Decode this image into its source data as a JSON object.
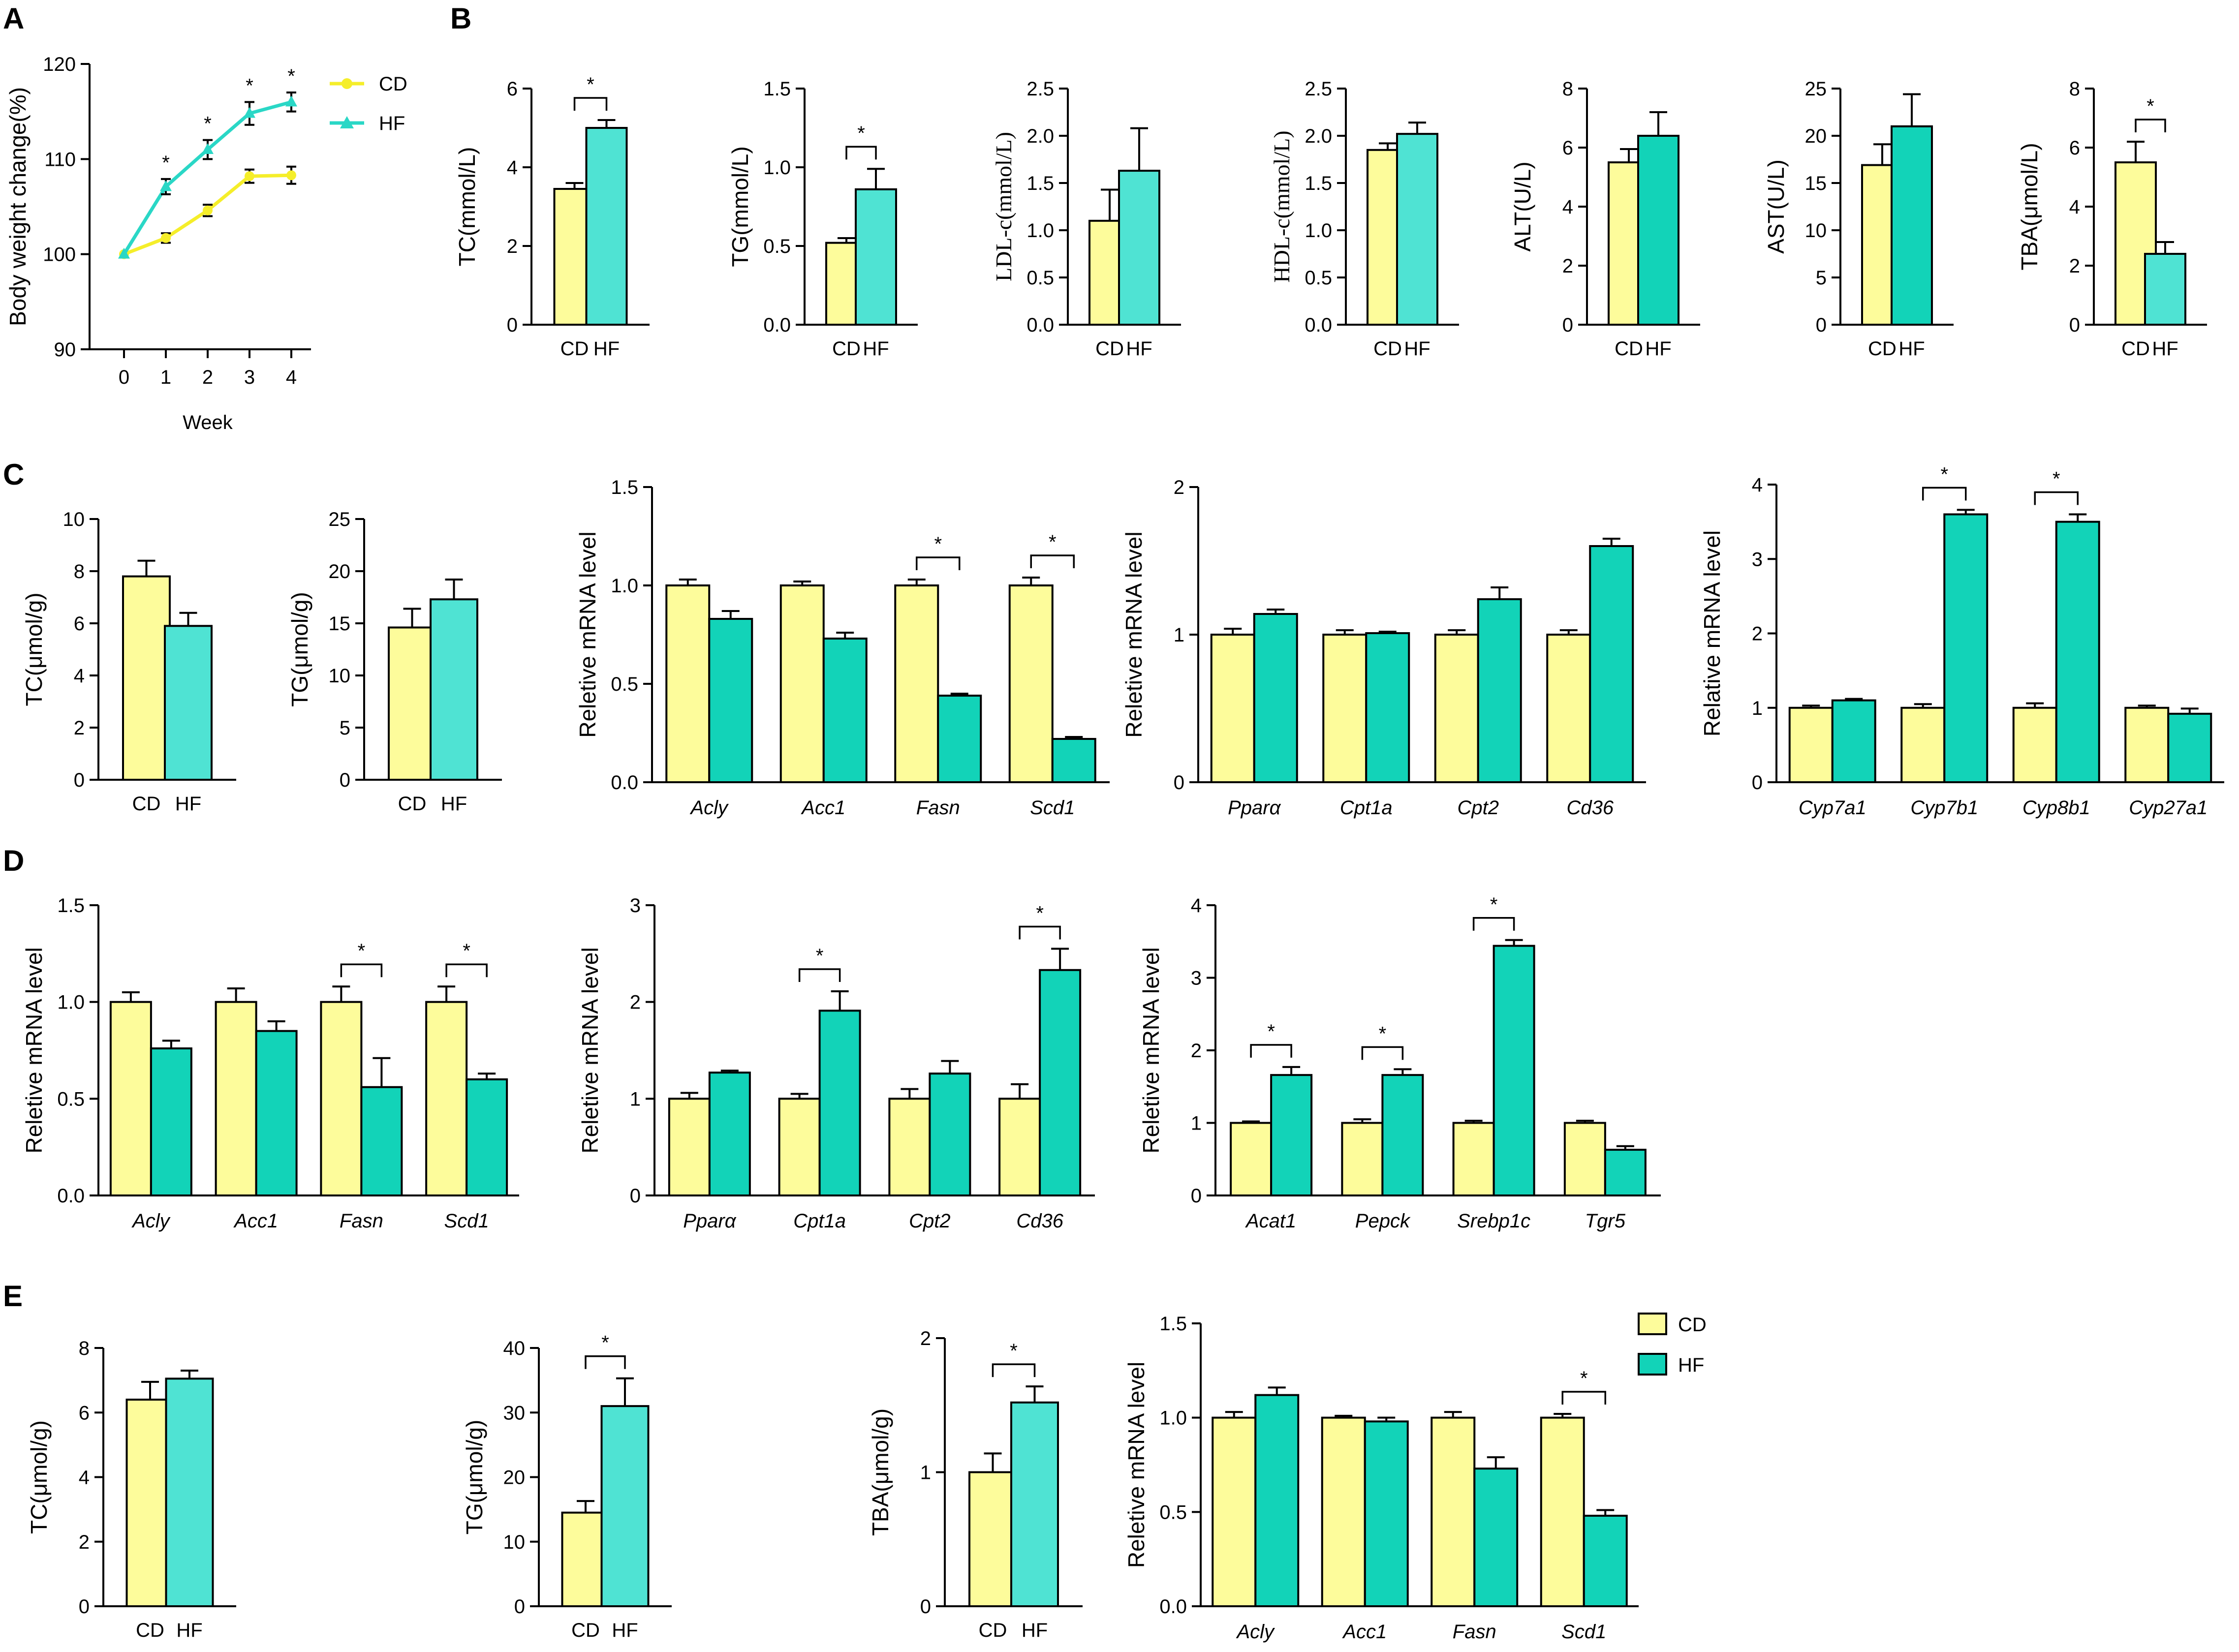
{
  "panel_labels": [
    "A",
    "B",
    "C",
    "D",
    "E"
  ],
  "colors": {
    "CD": "#FDFC9B",
    "HF_light": "#4FE3D3",
    "HF_dark": "#12D3B8",
    "CD_line": "#F5EE2A",
    "HF_line": "#2AD7C6"
  },
  "legend": {
    "cd": "CD",
    "hf": "HF"
  },
  "chart_data": [
    {
      "id": "A",
      "type": "line",
      "ylabel": "Body weight change(%)",
      "xlabel": "Week",
      "x": [
        0,
        1,
        2,
        3,
        4
      ],
      "ylim": [
        90,
        120
      ],
      "yticks": [
        90,
        100,
        110,
        120
      ],
      "series": [
        {
          "name": "CD",
          "values": [
            100,
            101.7,
            104.6,
            108.2,
            108.3
          ],
          "err": [
            0,
            0.5,
            0.6,
            0.7,
            0.9
          ]
        },
        {
          "name": "HF",
          "values": [
            100,
            107.1,
            111,
            114.8,
            116
          ],
          "err": [
            0,
            0.8,
            1.0,
            1.2,
            1.0
          ]
        }
      ],
      "stars": [
        1,
        2,
        3,
        4
      ],
      "star": "*"
    },
    {
      "id": "B1",
      "type": "bar",
      "ylabel": "TC(mmol/L)",
      "categories": [
        "CD",
        "HF"
      ],
      "values": [
        3.45,
        5.0
      ],
      "err": [
        0.15,
        0.2
      ],
      "ylim": [
        0,
        6
      ],
      "yticks": [
        0,
        2,
        4,
        6
      ],
      "tickLabels": [
        "0",
        "2",
        "4",
        "6"
      ],
      "sig": [
        [
          0,
          1
        ]
      ],
      "star": "*"
    },
    {
      "id": "B2",
      "type": "bar",
      "ylabel": "TG(mmol/L)",
      "categories": [
        "CD",
        "HF"
      ],
      "values": [
        0.52,
        0.86
      ],
      "err": [
        0.03,
        0.13
      ],
      "ylim": [
        0,
        1.5
      ],
      "yticks": [
        0,
        0.5,
        1,
        1.5
      ],
      "tickLabels": [
        "0.0",
        "0.5",
        "1.0",
        "1.5"
      ],
      "sig": [
        [
          0,
          1
        ]
      ],
      "star": "*"
    },
    {
      "id": "B3",
      "type": "bar",
      "ylabel": "LDL-c(mmol/L)",
      "categories": [
        "CD",
        "HF"
      ],
      "values": [
        1.1,
        1.63
      ],
      "err": [
        0.33,
        0.45
      ],
      "ylim": [
        0,
        2.5
      ],
      "yticks": [
        0,
        0.5,
        1,
        1.5,
        2,
        2.5
      ],
      "tickLabels": [
        "0.0",
        "0.5",
        "1.0",
        "1.5",
        "2.0",
        "2.5"
      ],
      "sig": []
    },
    {
      "id": "B4",
      "type": "bar",
      "ylabel": "HDL-c(mmol/L)",
      "categories": [
        "CD",
        "HF"
      ],
      "values": [
        1.85,
        2.02
      ],
      "err": [
        0.07,
        0.12
      ],
      "ylim": [
        0,
        2.5
      ],
      "yticks": [
        0,
        0.5,
        1,
        1.5,
        2,
        2.5
      ],
      "tickLabels": [
        "0.0",
        "0.5",
        "1.0",
        "1.5",
        "2.0",
        "2.5"
      ],
      "sig": []
    },
    {
      "id": "B5",
      "type": "bar",
      "ylabel": "ALT(U/L)",
      "categories": [
        "CD",
        "HF"
      ],
      "values": [
        5.5,
        6.4
      ],
      "err": [
        0.45,
        0.8
      ],
      "ylim": [
        0,
        8
      ],
      "yticks": [
        0,
        2,
        4,
        6,
        8
      ],
      "tickLabels": [
        "0",
        "2",
        "4",
        "6",
        "8"
      ],
      "sig": []
    },
    {
      "id": "B6",
      "type": "bar",
      "ylabel": "AST(U/L)",
      "categories": [
        "CD",
        "HF"
      ],
      "values": [
        16.9,
        21.0
      ],
      "err": [
        2.2,
        3.4
      ],
      "ylim": [
        0,
        25
      ],
      "yticks": [
        0,
        5,
        10,
        15,
        20,
        25
      ],
      "tickLabels": [
        "0",
        "5",
        "10",
        "15",
        "20",
        "25"
      ],
      "sig": []
    },
    {
      "id": "B7",
      "type": "bar",
      "ylabel": "TBA(μmol/L)",
      "categories": [
        "CD",
        "HF"
      ],
      "values": [
        5.5,
        2.4
      ],
      "err": [
        0.7,
        0.4
      ],
      "ylim": [
        0,
        8
      ],
      "yticks": [
        0,
        2,
        4,
        6,
        8
      ],
      "tickLabels": [
        "0",
        "2",
        "4",
        "6",
        "8"
      ],
      "sig": [
        [
          0,
          1
        ]
      ],
      "star": "*"
    },
    {
      "id": "C1",
      "type": "bar",
      "ylabel": "TC(μmol/g)",
      "categories": [
        "CD",
        "HF"
      ],
      "values": [
        7.8,
        5.9
      ],
      "err": [
        0.6,
        0.5
      ],
      "ylim": [
        0,
        10
      ],
      "yticks": [
        0,
        2,
        4,
        6,
        8,
        10
      ],
      "tickLabels": [
        "0",
        "2",
        "4",
        "6",
        "8",
        "10"
      ],
      "sig": []
    },
    {
      "id": "C2",
      "type": "bar",
      "ylabel": "TG(μmol/g)",
      "categories": [
        "CD",
        "HF"
      ],
      "values": [
        14.6,
        17.3
      ],
      "err": [
        1.8,
        1.9
      ],
      "ylim": [
        0,
        25
      ],
      "yticks": [
        0,
        5,
        10,
        15,
        20,
        25
      ],
      "tickLabels": [
        "0",
        "5",
        "10",
        "15",
        "20",
        "25"
      ],
      "sig": []
    },
    {
      "id": "C3",
      "type": "grouped",
      "ylabel": "Reletive mRNA level",
      "categories": [
        "Acly",
        "Acc1",
        "Fasn",
        "Scd1"
      ],
      "series": [
        {
          "name": "CD",
          "values": [
            1.0,
            1.0,
            1.0,
            1.0
          ],
          "err": [
            0.03,
            0.02,
            0.03,
            0.04
          ]
        },
        {
          "name": "HF",
          "values": [
            0.83,
            0.73,
            0.44,
            0.22
          ],
          "err": [
            0.04,
            0.03,
            0.01,
            0.01
          ]
        }
      ],
      "ylim": [
        0,
        1.5
      ],
      "yticks": [
        0,
        0.5,
        1,
        1.5
      ],
      "tickLabels": [
        "0.0",
        "0.5",
        "1.0",
        "1.5"
      ],
      "sig": [
        2,
        3
      ],
      "star": "*"
    },
    {
      "id": "C4",
      "type": "grouped",
      "ylabel": "Reletive mRNA level",
      "categories": [
        "Pparα",
        "Cpt1a",
        "Cpt2",
        "Cd36"
      ],
      "series": [
        {
          "name": "CD",
          "values": [
            1.0,
            1.0,
            1.0,
            1.0
          ],
          "err": [
            0.04,
            0.03,
            0.03,
            0.03
          ]
        },
        {
          "name": "HF",
          "values": [
            1.14,
            1.01,
            1.24,
            1.6
          ],
          "err": [
            0.03,
            0.01,
            0.08,
            0.05
          ]
        }
      ],
      "ylim": [
        0,
        2
      ],
      "yticks": [
        0,
        1,
        2
      ],
      "tickLabels": [
        "0",
        "1",
        "2"
      ],
      "sig": []
    },
    {
      "id": "C5",
      "type": "grouped",
      "ylabel": "Relative mRNA level",
      "categories": [
        "Cyp7a1",
        "Cyp7b1",
        "Cyp8b1",
        "Cyp27a1"
      ],
      "series": [
        {
          "name": "CD",
          "values": [
            1.0,
            1.0,
            1.0,
            1.0
          ],
          "err": [
            0.03,
            0.05,
            0.06,
            0.03
          ]
        },
        {
          "name": "HF",
          "values": [
            1.1,
            3.6,
            3.5,
            0.92
          ],
          "err": [
            0.02,
            0.06,
            0.1,
            0.07
          ]
        }
      ],
      "ylim": [
        0,
        4
      ],
      "yticks": [
        0,
        1,
        2,
        3,
        4
      ],
      "tickLabels": [
        "0",
        "1",
        "2",
        "3",
        "4"
      ],
      "sig": [
        1,
        2
      ],
      "star": "*"
    },
    {
      "id": "D1",
      "type": "grouped",
      "ylabel": "Reletive mRNA level",
      "categories": [
        "Acly",
        "Acc1",
        "Fasn",
        "Scd1"
      ],
      "series": [
        {
          "name": "CD",
          "values": [
            1.0,
            1.0,
            1.0,
            1.0
          ],
          "err": [
            0.05,
            0.07,
            0.08,
            0.08
          ]
        },
        {
          "name": "HF",
          "values": [
            0.76,
            0.85,
            0.56,
            0.6
          ],
          "err": [
            0.04,
            0.05,
            0.15,
            0.03
          ]
        }
      ],
      "ylim": [
        0,
        1.5
      ],
      "yticks": [
        0,
        0.5,
        1,
        1.5
      ],
      "tickLabels": [
        "0.0",
        "0.5",
        "1.0",
        "1.5"
      ],
      "sig": [
        2,
        3
      ],
      "star": "*"
    },
    {
      "id": "D2",
      "type": "grouped",
      "ylabel": "Reletive mRNA level",
      "categories": [
        "Pparα",
        "Cpt1a",
        "Cpt2",
        "Cd36"
      ],
      "series": [
        {
          "name": "CD",
          "values": [
            1.0,
            1.0,
            1.0,
            1.0
          ],
          "err": [
            0.06,
            0.05,
            0.1,
            0.15
          ]
        },
        {
          "name": "HF",
          "values": [
            1.27,
            1.91,
            1.26,
            2.33
          ],
          "err": [
            0.02,
            0.2,
            0.13,
            0.22
          ]
        }
      ],
      "ylim": [
        0,
        3
      ],
      "yticks": [
        0,
        1,
        2,
        3
      ],
      "tickLabels": [
        "0",
        "1",
        "2",
        "3"
      ],
      "sig": [
        1,
        3
      ],
      "star": "*"
    },
    {
      "id": "D3",
      "type": "grouped",
      "ylabel": "Reletive mRNA level",
      "categories": [
        "Acat1",
        "Pepck",
        "Srebp1c",
        "Tgr5"
      ],
      "series": [
        {
          "name": "CD",
          "values": [
            1.0,
            1.0,
            1.0,
            1.0
          ],
          "err": [
            0.02,
            0.05,
            0.03,
            0.03
          ]
        },
        {
          "name": "HF",
          "values": [
            1.66,
            1.66,
            3.44,
            0.63
          ],
          "err": [
            0.11,
            0.08,
            0.08,
            0.05
          ]
        }
      ],
      "ylim": [
        0,
        4
      ],
      "yticks": [
        0,
        1,
        2,
        3,
        4
      ],
      "tickLabels": [
        "0",
        "1",
        "2",
        "3",
        "4"
      ],
      "sig": [
        0,
        1,
        2
      ],
      "star": "*"
    },
    {
      "id": "E1",
      "type": "bar",
      "ylabel": "TC(μmol/g)",
      "categories": [
        "CD",
        "HF"
      ],
      "values": [
        6.4,
        7.05
      ],
      "err": [
        0.55,
        0.25
      ],
      "ylim": [
        0,
        8
      ],
      "yticks": [
        0,
        2,
        4,
        6,
        8
      ],
      "tickLabels": [
        "0",
        "2",
        "4",
        "6",
        "8"
      ],
      "sig": []
    },
    {
      "id": "E2",
      "type": "bar",
      "ylabel": "TG(μmol/g)",
      "categories": [
        "CD",
        "HF"
      ],
      "values": [
        14.5,
        31.0
      ],
      "err": [
        1.8,
        4.3
      ],
      "ylim": [
        0,
        40
      ],
      "yticks": [
        0,
        10,
        20,
        30,
        40
      ],
      "tickLabels": [
        "0",
        "10",
        "20",
        "30",
        "40"
      ],
      "sig": [
        [
          0,
          1
        ]
      ],
      "star": "*"
    },
    {
      "id": "E3",
      "type": "bar",
      "ylabel": "TBA(μmol/g)",
      "categories": [
        "CD",
        "HF"
      ],
      "values": [
        1.0,
        1.52
      ],
      "err": [
        0.14,
        0.12
      ],
      "ylim": [
        0,
        2
      ],
      "yticks": [
        0,
        1,
        2
      ],
      "tickLabels": [
        "0",
        "1",
        "2"
      ],
      "sig": [
        [
          0,
          1
        ]
      ],
      "star": "*"
    },
    {
      "id": "E4",
      "type": "grouped",
      "ylabel": "Reletive mRNA level",
      "categories": [
        "Acly",
        "Acc1",
        "Fasn",
        "Scd1"
      ],
      "series": [
        {
          "name": "CD",
          "values": [
            1.0,
            1.0,
            1.0,
            1.0
          ],
          "err": [
            0.03,
            0.01,
            0.03,
            0.02
          ]
        },
        {
          "name": "HF",
          "values": [
            1.12,
            0.98,
            0.73,
            0.48
          ],
          "err": [
            0.04,
            0.02,
            0.06,
            0.03
          ]
        }
      ],
      "ylim": [
        0,
        1.5
      ],
      "yticks": [
        0,
        0.5,
        1,
        1.5
      ],
      "tickLabels": [
        "0.0",
        "0.5",
        "1.0",
        "1.5"
      ],
      "sig": [
        3
      ],
      "star": "*"
    }
  ]
}
